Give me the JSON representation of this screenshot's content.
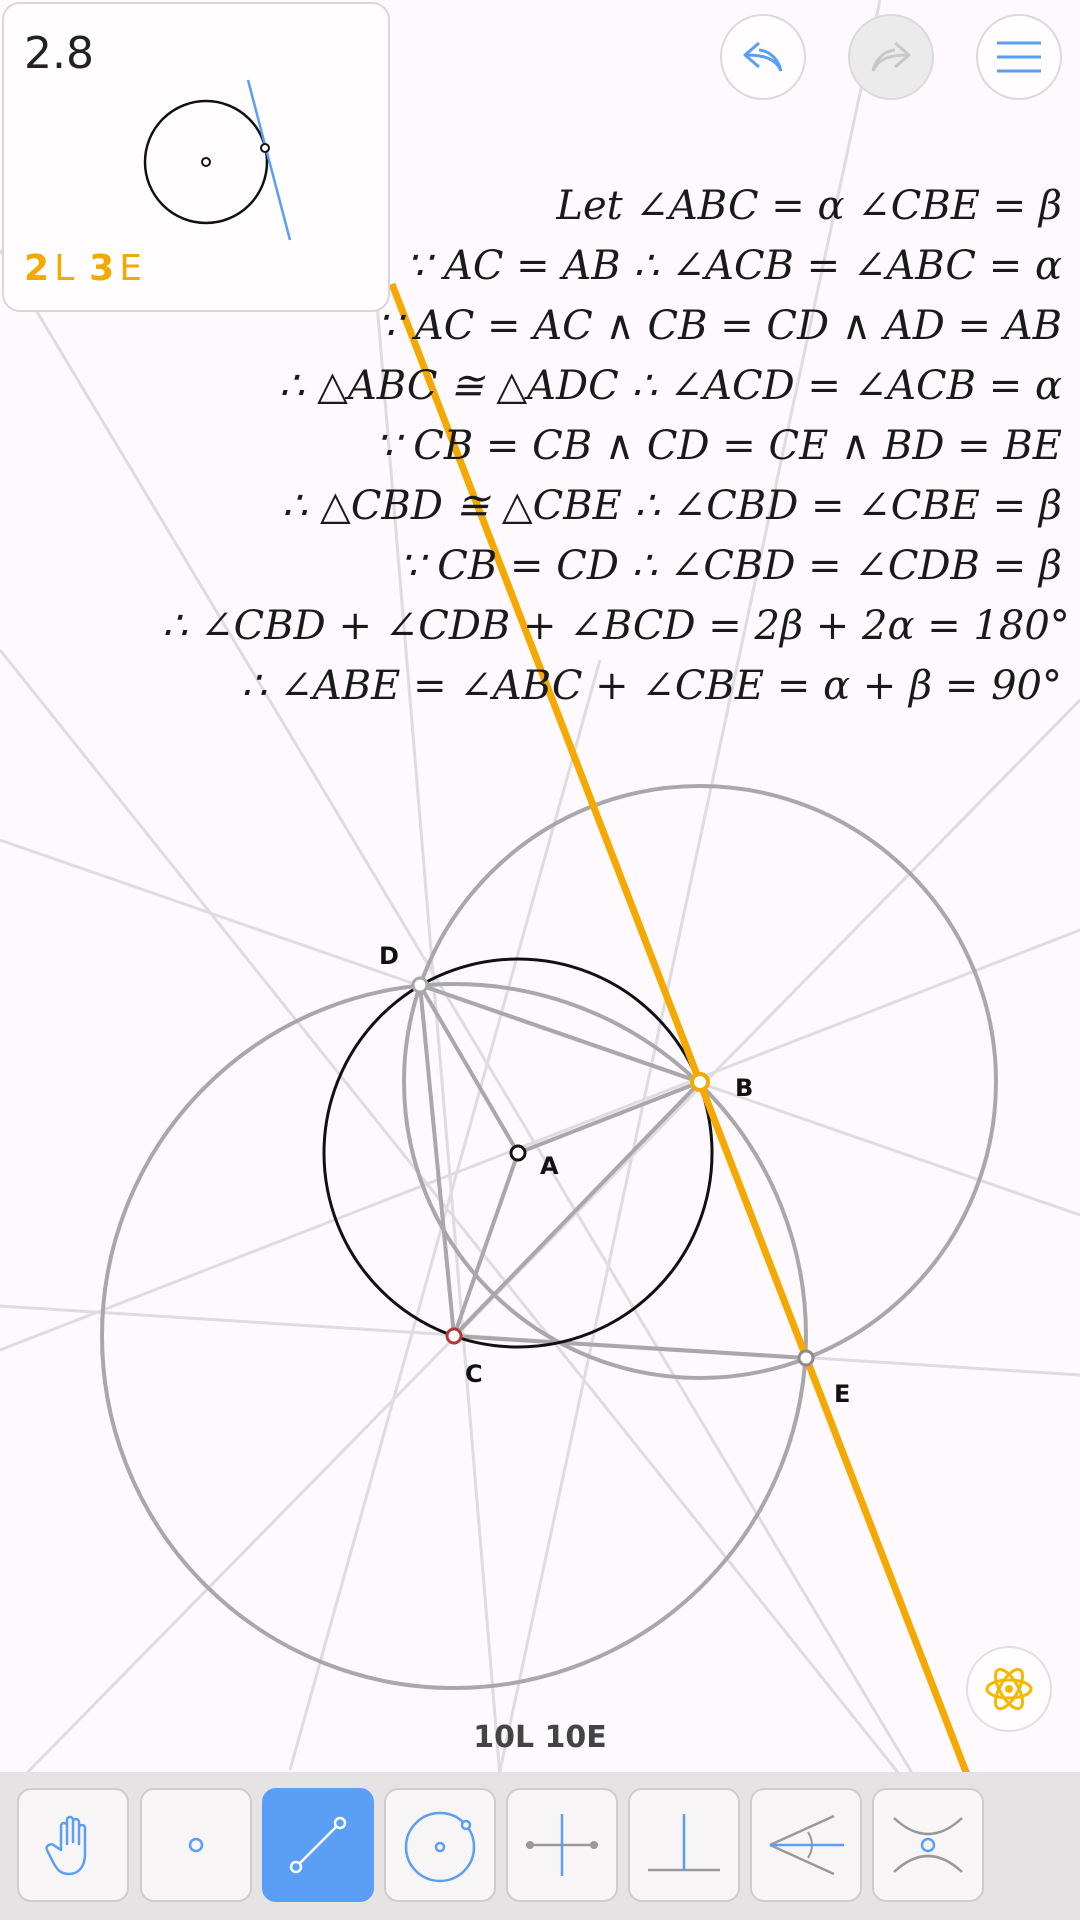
{
  "level": {
    "number": "2.8",
    "goal_lines": "2",
    "goal_lines_unit": "L",
    "goal_elements": "3",
    "goal_elements_unit": "E"
  },
  "header": {
    "undo_icon": "undo-arrow-icon",
    "redo_icon": "redo-arrow-icon",
    "menu_icon": "hamburger-menu-icon"
  },
  "proof": {
    "lines": [
      "Let   ∠ABC = α   ∠CBE = β",
      "∵ AC = AB ∴ ∠ACB = ∠ABC = α",
      "∵ AC = AC ∧ CB = CD ∧ AD = AB",
      "∴ △ABC ≅ △ADC ∴ ∠ACD = ∠ACB = α",
      "∵ CB = CB ∧ CD = CE ∧ BD = BE",
      "∴ △CBD ≅ △CBE ∴ ∠CBD = ∠CBE = β",
      "∵ CB = CD ∴ ∠CBD = ∠CDB = β",
      "∴ ∠CBD + ∠CDB + ∠BCD = 2β + 2α = 180°",
      "∴ ∠ABE = ∠ABC + ∠CBE = α + β = 90°"
    ]
  },
  "points": {
    "A": "A",
    "B": "B",
    "C": "C",
    "D": "D",
    "E": "E"
  },
  "score": "10L  10E",
  "hint_icon": "atom-icon",
  "toolbar": {
    "tools": [
      {
        "name": "hand-tool",
        "icon": "hand-icon"
      },
      {
        "name": "point-tool",
        "icon": "point-icon"
      },
      {
        "name": "line-tool",
        "icon": "line-icon",
        "active": true
      },
      {
        "name": "circle-tool",
        "icon": "circle-icon"
      },
      {
        "name": "perpendicular-bisector-tool",
        "icon": "perpendicular-bisector-icon"
      },
      {
        "name": "perpendicular-tool",
        "icon": "perpendicular-icon"
      },
      {
        "name": "angle-bisector-tool",
        "icon": "angle-bisector-icon"
      },
      {
        "name": "intersection-tool",
        "icon": "intersection-icon"
      }
    ]
  },
  "colors": {
    "background": "#fdf9fc",
    "highlight": "#f5a800",
    "accent_blue": "#5b9ef5",
    "construction_gray": "#a9a7a9",
    "faint_gray": "#dedcde"
  }
}
